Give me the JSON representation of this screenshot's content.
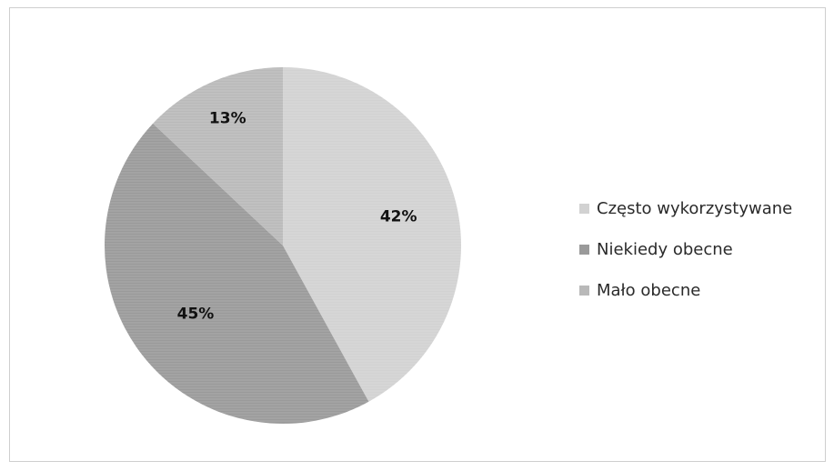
{
  "chart_data": {
    "type": "pie",
    "title": "",
    "legend_position": "right",
    "slices": [
      {
        "label": "Często wykorzystywane",
        "value": 42,
        "value_label": "42%",
        "color": "#d2d2d2"
      },
      {
        "label": "Niekiedy obecne",
        "value": 45,
        "value_label": "45%",
        "color": "#9a9a9a"
      },
      {
        "label": "Mało obecne",
        "value": 13,
        "value_label": "13%",
        "color": "#b9b9b9"
      }
    ]
  }
}
